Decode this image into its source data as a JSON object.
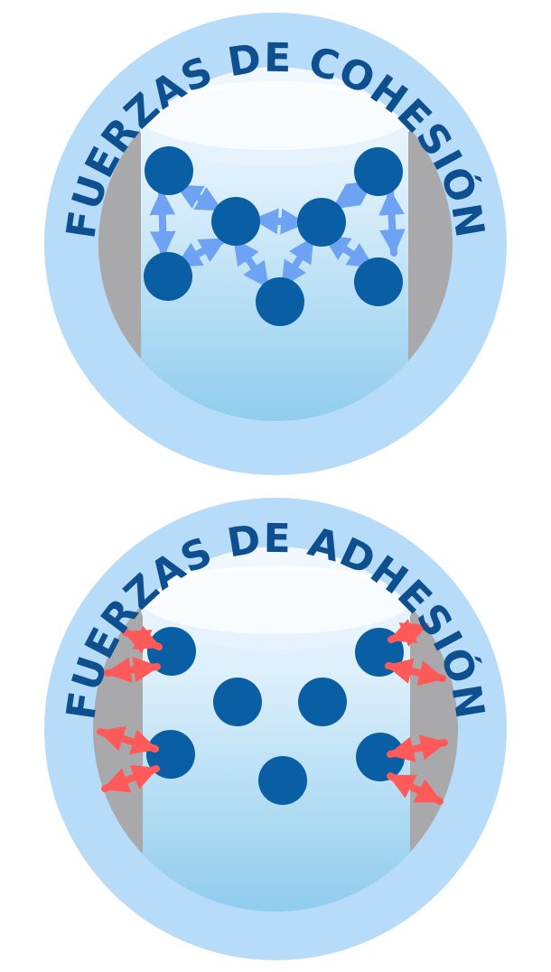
{
  "panels": [
    {
      "id": "cohesion",
      "title": "FUERZAS DE COHESIÓN",
      "colors": {
        "ring": "#b6dcfa",
        "wall": "#a9a9ab",
        "water_top": "#f4f9fe",
        "water_bottom": "#8ccbed",
        "molecule": "#0a5ea3",
        "arrow": "#6ea2f2",
        "title": "#0d4f8f"
      }
    },
    {
      "id": "adhesion",
      "title": "FUERZAS DE ADHESIÓN",
      "colors": {
        "ring": "#b6dcfa",
        "wall": "#a9a9ab",
        "water_top": "#f4f9fe",
        "water_bottom": "#8ccbed",
        "molecule": "#0a5ea3",
        "arrow": "#ff5a5a",
        "title": "#0d4f8f"
      }
    }
  ]
}
